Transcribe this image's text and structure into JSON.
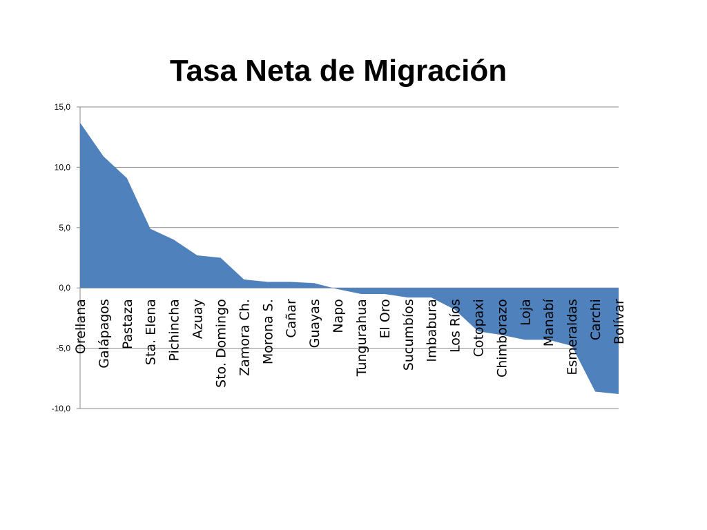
{
  "chart_data": {
    "type": "area",
    "title": "Tasa Neta de Migración",
    "xlabel": "",
    "ylabel": "",
    "categories": [
      "Orellana",
      "Galápagos",
      "Pastaza",
      "Sta. Elena",
      "Pichincha",
      "Azuay",
      "Sto. Domingo",
      "Zamora Ch.",
      "Morona S.",
      "Cañar",
      "Guayas",
      "Napo",
      "Tungurahua",
      "El Oro",
      "Sucumbíos",
      "Imbabura",
      "Los Ríos",
      "Cotopaxi",
      "Chimborazo",
      "Loja",
      "Manabí",
      "Esmeraldas",
      "Carchi",
      "Bolívar"
    ],
    "series": [
      {
        "values": [
          13.7,
          10.9,
          9.1,
          4.9,
          4.0,
          2.7,
          2.5,
          0.7,
          0.5,
          0.5,
          0.4,
          -0.1,
          -0.5,
          -0.5,
          -0.8,
          -0.8,
          -1.8,
          -3.6,
          -3.9,
          -4.3,
          -4.3,
          -4.8,
          -8.6,
          -8.8
        ],
        "color": "#4f81bd"
      }
    ],
    "ylim": [
      -10,
      15
    ],
    "yticks": [
      "15,0",
      "10,0",
      "5,0",
      "0,0",
      "-5,0",
      "-10,0"
    ],
    "grid": true,
    "legend": "none"
  }
}
